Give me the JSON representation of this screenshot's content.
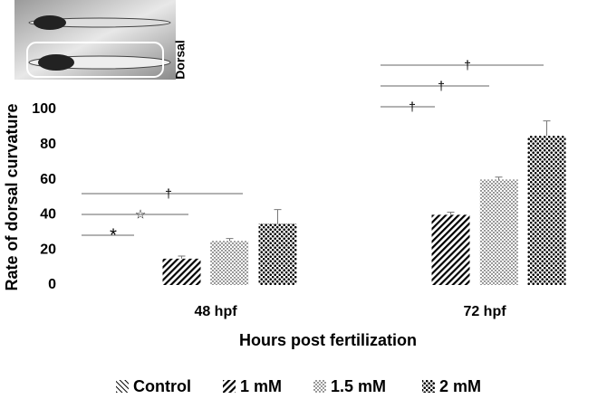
{
  "chart_data": {
    "type": "bar",
    "y_label": "Rate of dorsal curvature",
    "x_label": "Hours post fertilization",
    "inset_label": "Dorsal",
    "categories": [
      "48 hpf",
      "72 hpf"
    ],
    "series": [
      {
        "name": "Control",
        "color": "#000000",
        "pattern": "hatch-light",
        "values": [
          0,
          0
        ],
        "errors": [
          0,
          0
        ]
      },
      {
        "name": "1 mM",
        "color": "#000000",
        "pattern": "diagonal",
        "values": [
          15,
          40
        ],
        "errors": [
          1.5,
          1.5
        ]
      },
      {
        "name": "1.5 mM",
        "color": "#000000",
        "pattern": "fine-dots",
        "values": [
          25,
          60
        ],
        "errors": [
          1.5,
          1.5
        ]
      },
      {
        "name": "2 mM",
        "color": "#000000",
        "pattern": "big-dots",
        "values": [
          35,
          85
        ],
        "errors": [
          8,
          8.5
        ]
      }
    ],
    "annotations": [
      "*",
      "☆",
      "†",
      "†",
      "†",
      "†"
    ],
    "ylim": [
      0,
      100
    ],
    "yticks": [
      0,
      20,
      40,
      60,
      80,
      100
    ],
    "grid": false,
    "legend": "bottom"
  }
}
